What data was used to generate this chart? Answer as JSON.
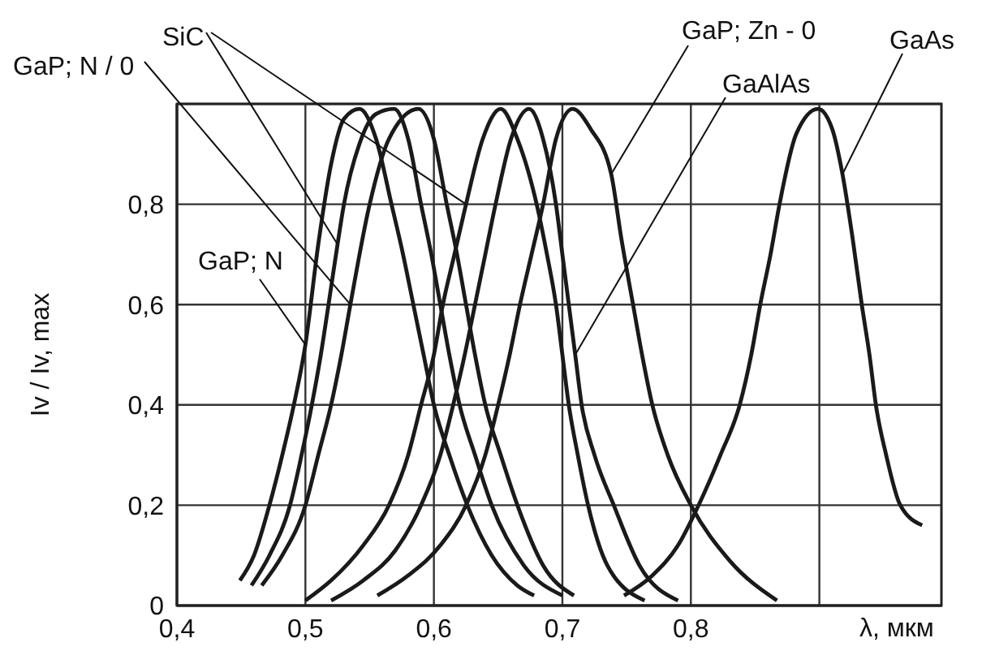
{
  "chart_data": {
    "type": "line",
    "xlabel": "λ, мкм",
    "ylabel": "Iv / Iv, max",
    "xlim": [
      0.4,
      0.995
    ],
    "ylim": [
      0,
      1
    ],
    "xticks": [
      {
        "value": 0.4,
        "label": "0,4"
      },
      {
        "value": 0.5,
        "label": "0,5"
      },
      {
        "value": 0.6,
        "label": "0,6"
      },
      {
        "value": 0.7,
        "label": "0,7"
      },
      {
        "value": 0.8,
        "label": "0,8"
      },
      {
        "value": 0.9,
        "label": null
      }
    ],
    "yticks": [
      {
        "value": 0,
        "label": "0"
      },
      {
        "value": 0.2,
        "label": "0,2"
      },
      {
        "value": 0.4,
        "label": "0,4"
      },
      {
        "value": 0.6,
        "label": "0,6"
      },
      {
        "value": 0.8,
        "label": "0,8"
      },
      {
        "value": 1,
        "label": null
      }
    ],
    "grid": true,
    "marker": "none",
    "line_style": "solid",
    "series": [
      {
        "name": "GaP; N",
        "color": "#1a1a1a",
        "x": [
          0.449,
          0.46,
          0.472,
          0.482,
          0.491,
          0.5,
          0.51,
          0.52,
          0.53,
          0.542,
          0.555,
          0.567,
          0.576,
          0.584,
          0.592,
          0.6,
          0.612,
          0.626,
          0.645,
          0.665,
          0.678
        ],
        "values": [
          0.05,
          0.1,
          0.2,
          0.3,
          0.4,
          0.52,
          0.72,
          0.88,
          0.97,
          0.99,
          0.93,
          0.8,
          0.7,
          0.6,
          0.5,
          0.4,
          0.3,
          0.2,
          0.1,
          0.04,
          0.02
        ]
      },
      {
        "name": "SiC",
        "color": "#1a1a1a",
        "x": [
          0.458,
          0.472,
          0.488,
          0.497,
          0.505,
          0.512,
          0.518,
          0.525,
          0.53,
          0.542,
          0.555,
          0.569,
          0.58,
          0.59,
          0.598,
          0.605,
          0.612,
          0.62,
          0.632,
          0.645,
          0.67,
          0.7
        ],
        "values": [
          0.04,
          0.1,
          0.2,
          0.3,
          0.4,
          0.5,
          0.6,
          0.72,
          0.8,
          0.92,
          0.98,
          0.99,
          0.93,
          0.8,
          0.7,
          0.6,
          0.5,
          0.4,
          0.3,
          0.2,
          0.08,
          0.02
        ]
      },
      {
        "name": "GaP; N / 0",
        "color": "#1a1a1a",
        "x": [
          0.466,
          0.482,
          0.5,
          0.51,
          0.52,
          0.528,
          0.535,
          0.55,
          0.565,
          0.588,
          0.6,
          0.61,
          0.618,
          0.625,
          0.632,
          0.64,
          0.652,
          0.665,
          0.685,
          0.709
        ],
        "values": [
          0.04,
          0.1,
          0.2,
          0.3,
          0.4,
          0.5,
          0.6,
          0.8,
          0.93,
          0.99,
          0.93,
          0.8,
          0.7,
          0.6,
          0.5,
          0.4,
          0.3,
          0.2,
          0.08,
          0.02
        ]
      },
      {
        "color": "#1a1a1a",
        "x": [
          0.5,
          0.52,
          0.545,
          0.565,
          0.58,
          0.59,
          0.6,
          0.607,
          0.616,
          0.625,
          0.638,
          0.652,
          0.665,
          0.68,
          0.688,
          0.695,
          0.7,
          0.705,
          0.712,
          0.72,
          0.735,
          0.764
        ],
        "values": [
          0.01,
          0.05,
          0.12,
          0.2,
          0.3,
          0.4,
          0.5,
          0.6,
          0.7,
          0.8,
          0.93,
          0.99,
          0.93,
          0.8,
          0.7,
          0.6,
          0.5,
          0.4,
          0.3,
          0.2,
          0.08,
          0.01
        ]
      },
      {
        "name": "GaAlAs",
        "color": "#1a1a1a",
        "x": [
          0.52,
          0.545,
          0.57,
          0.59,
          0.605,
          0.615,
          0.624,
          0.632,
          0.64,
          0.648,
          0.66,
          0.674,
          0.685,
          0.695,
          0.7,
          0.705,
          0.71,
          0.715,
          0.725,
          0.74,
          0.76,
          0.79
        ],
        "values": [
          0.01,
          0.05,
          0.11,
          0.2,
          0.3,
          0.4,
          0.5,
          0.6,
          0.7,
          0.8,
          0.93,
          0.99,
          0.93,
          0.8,
          0.7,
          0.6,
          0.5,
          0.4,
          0.3,
          0.2,
          0.08,
          0.01
        ]
      },
      {
        "name": "GaP; Zn - 0",
        "color": "#1a1a1a",
        "x": [
          0.556,
          0.58,
          0.605,
          0.625,
          0.64,
          0.65,
          0.659,
          0.667,
          0.676,
          0.685,
          0.695,
          0.708,
          0.722,
          0.738,
          0.746,
          0.755,
          0.762,
          0.77,
          0.782,
          0.8,
          0.83,
          0.867
        ],
        "values": [
          0.02,
          0.06,
          0.12,
          0.2,
          0.3,
          0.4,
          0.5,
          0.6,
          0.7,
          0.8,
          0.93,
          0.99,
          0.95,
          0.86,
          0.73,
          0.6,
          0.5,
          0.4,
          0.3,
          0.2,
          0.09,
          0.01
        ]
      },
      {
        "name": "GaAs",
        "color": "#1a1a1a",
        "x": [
          0.748,
          0.77,
          0.79,
          0.806,
          0.823,
          0.838,
          0.847,
          0.854,
          0.862,
          0.869,
          0.882,
          0.899,
          0.91,
          0.918,
          0.926,
          0.933,
          0.939,
          0.944,
          0.952,
          0.963,
          0.98
        ],
        "values": [
          0.02,
          0.06,
          0.12,
          0.2,
          0.3,
          0.4,
          0.5,
          0.6,
          0.7,
          0.8,
          0.94,
          0.99,
          0.95,
          0.86,
          0.73,
          0.6,
          0.5,
          0.4,
          0.3,
          0.2,
          0.16
        ]
      }
    ]
  }
}
